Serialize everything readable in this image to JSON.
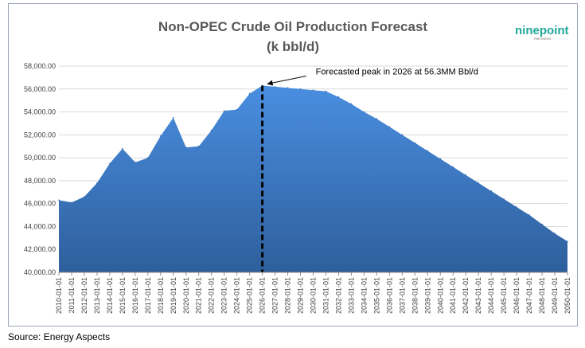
{
  "chart_data": {
    "type": "area",
    "title": "Non-OPEC Crude Oil Production Forecast",
    "subtitle": "(k bbl/d)",
    "xlabel": "",
    "ylabel": "",
    "ylim": [
      40000,
      58000
    ],
    "y_ticks": [
      "40,000.00",
      "42,000.00",
      "44,000.00",
      "46,000.00",
      "48,000.00",
      "50,000.00",
      "52,000.00",
      "54,000.00",
      "56,000.00",
      "58,000.00"
    ],
    "y_tick_values": [
      40000,
      42000,
      44000,
      46000,
      48000,
      50000,
      52000,
      54000,
      56000,
      58000
    ],
    "grid": true,
    "legend": "none",
    "series_color": "#3f7fd0",
    "x": [
      "2010-01-01",
      "2011-01-01",
      "2012-01-01",
      "2013-01-01",
      "2014-01-01",
      "2015-01-01",
      "2016-01-01",
      "2017-01-01",
      "2018-01-01",
      "2019-01-01",
      "2020-01-01",
      "2021-01-01",
      "2022-01-01",
      "2023-01-01",
      "2024-01-01",
      "2025-01-01",
      "2026-01-01",
      "2027-01-01",
      "2028-01-01",
      "2029-01-01",
      "2030-01-01",
      "2031-01-01",
      "2032-01-01",
      "2033-01-01",
      "2034-01-01",
      "2035-01-01",
      "2036-01-01",
      "2037-01-01",
      "2038-01-01",
      "2039-01-01",
      "2040-01-01",
      "2041-01-01",
      "2042-01-01",
      "2043-01-01",
      "2044-01-01",
      "2045-01-01",
      "2046-01-01",
      "2047-01-01",
      "2048-01-01",
      "2049-01-01",
      "2050-01-01"
    ],
    "values": [
      46300,
      46100,
      46600,
      47800,
      49500,
      50800,
      49600,
      50000,
      51900,
      53500,
      50900,
      51000,
      52400,
      54100,
      54200,
      55600,
      56300,
      56200,
      56100,
      56000,
      55900,
      55800,
      55300,
      54700,
      54000,
      53400,
      52700,
      52000,
      51300,
      50600,
      49900,
      49200,
      48500,
      47800,
      47100,
      46400,
      45700,
      45000,
      44200,
      43400,
      42700
    ],
    "peak_index": 16,
    "annotation": "Forecasted peak in 2026 at 56.3MM Bbl/d"
  },
  "logo": {
    "text": "ninepoint",
    "sub": "PARTNERS"
  },
  "source": "Source: Energy Aspects"
}
